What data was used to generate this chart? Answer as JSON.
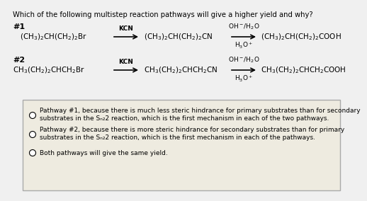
{
  "title": "Which of the following multistep reaction pathways will give a higher yield and why?",
  "background_color": "#f0f0f0",
  "box_bg": "#eeebe0",
  "box_border": "#aaaaaa",
  "option1_line1": "Pathway #1, because there is much less steric hindrance for primary substrates than for secondary",
  "option1_line2": "substrates in the Sₙ₂2 reaction, which is the first mechanism in each of the two pathways.",
  "option2_line1": "Pathway #2, because there is more steric hindrance for secondary substrates than for primary",
  "option2_line2": "substrates in the Sₙ₂2 reaction, which is the first mechanism in each of the pathways.",
  "option3": "Both pathways will give the same yield.",
  "rxn1_label": "#1",
  "rxn2_label": "#2",
  "title_fs": 7.2,
  "label_fs": 8.0,
  "chem_fs": 7.5,
  "arrow_label_fs": 6.5,
  "option_fs": 6.5
}
